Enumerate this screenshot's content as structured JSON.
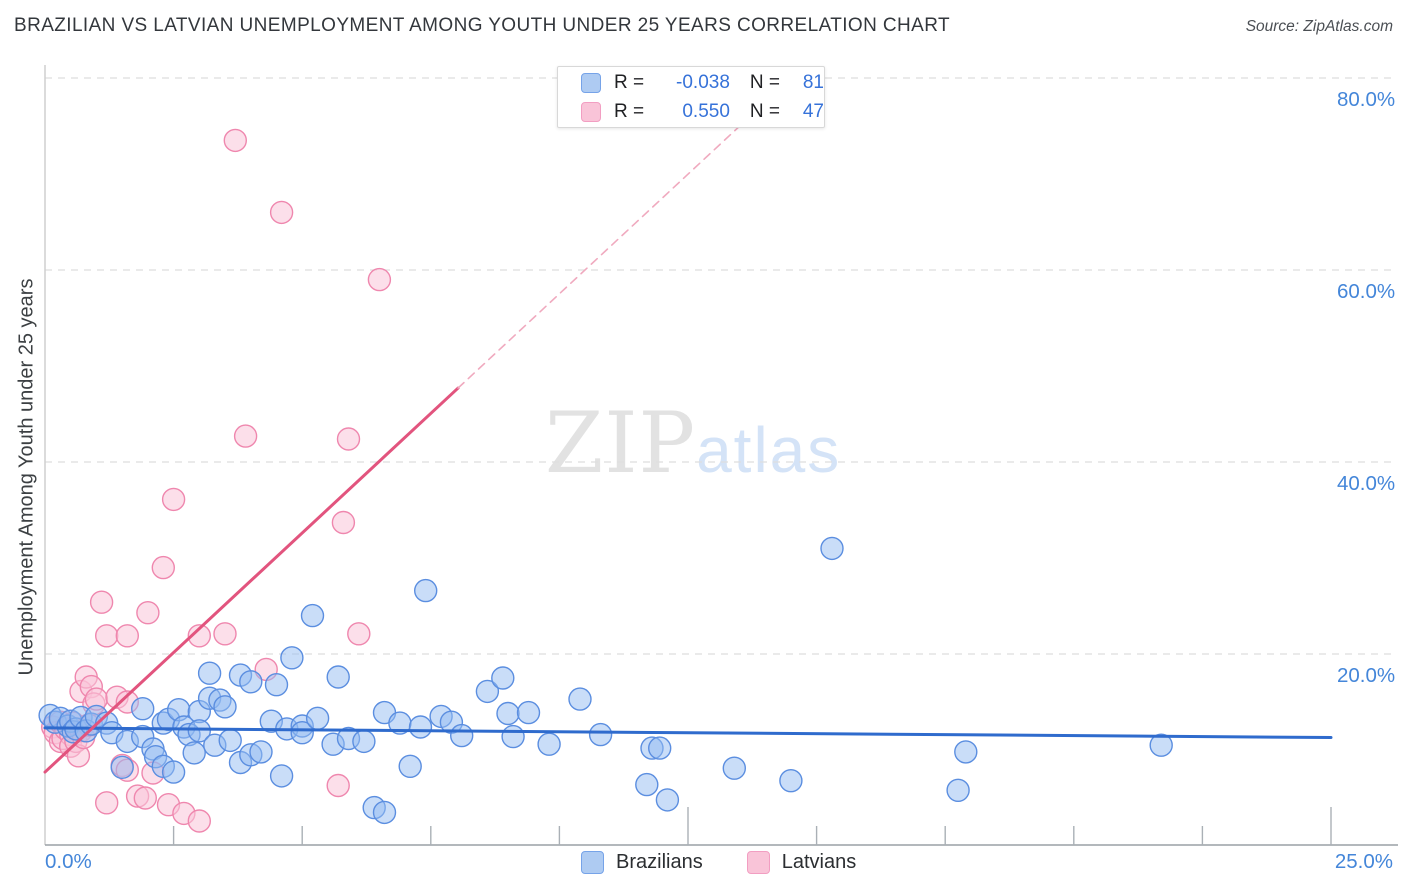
{
  "header": {
    "title": "BRAZILIAN VS LATVIAN UNEMPLOYMENT AMONG YOUTH UNDER 25 YEARS CORRELATION CHART",
    "source": "Source: ZipAtlas.com"
  },
  "y_axis": {
    "label": "Unemployment Among Youth under 25 years",
    "ticks": [
      {
        "pct": 80,
        "label": "80.0%"
      },
      {
        "pct": 60,
        "label": "60.0%"
      },
      {
        "pct": 40,
        "label": "40.0%"
      },
      {
        "pct": 20,
        "label": "20.0%"
      }
    ]
  },
  "x_axis": {
    "min_label": "0.0%",
    "max_label": "25.0%",
    "tick_pcts": [
      2.5,
      5,
      7.5,
      10,
      12.5,
      15,
      17.5,
      20,
      22.5,
      25
    ],
    "major_tick_pcts": [
      12.5,
      25
    ]
  },
  "legend_box": {
    "rows": [
      {
        "series": "Brazilians",
        "r_label": "R =",
        "r_value": "-0.038",
        "n_label": "N =",
        "n_value": "81"
      },
      {
        "series": "Latvians",
        "r_label": "R =",
        "r_value": "0.550",
        "n_label": "N =",
        "n_value": "47"
      }
    ]
  },
  "bottom_legend": {
    "items": [
      {
        "label": "Brazilians"
      },
      {
        "label": "Latvians"
      }
    ]
  },
  "watermark": {
    "zip": "ZIP",
    "atlas": "atlas"
  },
  "colors": {
    "title": "#33373c",
    "tick_label_blue": "#4486d9",
    "grid": "#dedede",
    "axis_bottom": "#9aa0a6",
    "axis_left": "#cfcfcf",
    "tick": "#aab0b6",
    "blue_stroke": "#5b8ee0",
    "blue_fill": "rgba(147,187,242,0.50)",
    "pink_stroke": "#ef87ae",
    "pink_fill": "rgba(249,196,216,0.55)",
    "blue_trend": "#2f6bcd",
    "pink_trend": "#e2547e",
    "pink_trend_dashed": "#f0aabf"
  },
  "chart_data": {
    "type": "scatter",
    "title": "BRAZILIAN VS LATVIAN UNEMPLOYMENT AMONG YOUTH UNDER 25 YEARS CORRELATION CHART",
    "xlabel": "",
    "ylabel": "Unemployment Among Youth under 25 years",
    "xlim": [
      0,
      25
    ],
    "ylim": [
      0,
      84
    ],
    "grid": "dashed-horizontal",
    "legend_position": "bottom-center",
    "series": [
      {
        "name": "Brazilians",
        "R": -0.038,
        "N": 81,
        "points": [
          [
            0.1,
            13.6
          ],
          [
            0.2,
            12.9
          ],
          [
            0.3,
            13.3
          ],
          [
            0.45,
            12.5
          ],
          [
            0.5,
            13.0
          ],
          [
            0.55,
            11.9
          ],
          [
            0.6,
            12.2
          ],
          [
            0.7,
            13.4
          ],
          [
            0.8,
            12.0
          ],
          [
            0.9,
            12.7
          ],
          [
            1.0,
            13.5
          ],
          [
            1.2,
            12.8
          ],
          [
            1.3,
            11.8
          ],
          [
            1.5,
            8.2
          ],
          [
            1.6,
            10.9
          ],
          [
            1.9,
            11.4
          ],
          [
            1.9,
            14.3
          ],
          [
            2.1,
            10.1
          ],
          [
            2.15,
            9.3
          ],
          [
            2.3,
            12.8
          ],
          [
            2.3,
            8.3
          ],
          [
            2.4,
            13.2
          ],
          [
            2.5,
            7.7
          ],
          [
            2.6,
            14.2
          ],
          [
            2.7,
            12.4
          ],
          [
            2.8,
            11.6
          ],
          [
            2.9,
            9.7
          ],
          [
            3.0,
            14.0
          ],
          [
            3.0,
            12.0
          ],
          [
            3.2,
            15.4
          ],
          [
            3.2,
            18.0
          ],
          [
            3.3,
            10.5
          ],
          [
            3.4,
            15.2
          ],
          [
            3.5,
            14.5
          ],
          [
            3.6,
            11.0
          ],
          [
            3.8,
            17.8
          ],
          [
            3.8,
            8.7
          ],
          [
            4.0,
            17.1
          ],
          [
            4.0,
            9.5
          ],
          [
            4.2,
            9.8
          ],
          [
            4.4,
            13.0
          ],
          [
            4.5,
            16.8
          ],
          [
            4.6,
            7.3
          ],
          [
            4.7,
            12.2
          ],
          [
            4.8,
            19.6
          ],
          [
            5.0,
            12.5
          ],
          [
            5.0,
            11.8
          ],
          [
            5.2,
            24.0
          ],
          [
            5.3,
            13.3
          ],
          [
            5.6,
            10.6
          ],
          [
            5.7,
            17.6
          ],
          [
            5.9,
            11.2
          ],
          [
            6.2,
            10.9
          ],
          [
            6.4,
            4.0
          ],
          [
            6.6,
            3.5
          ],
          [
            6.6,
            13.9
          ],
          [
            6.9,
            12.8
          ],
          [
            7.1,
            8.3
          ],
          [
            7.3,
            12.4
          ],
          [
            7.4,
            26.6
          ],
          [
            7.7,
            13.5
          ],
          [
            7.9,
            12.9
          ],
          [
            8.1,
            11.5
          ],
          [
            8.6,
            16.1
          ],
          [
            8.9,
            17.5
          ],
          [
            9.0,
            13.8
          ],
          [
            9.1,
            11.4
          ],
          [
            9.4,
            13.9
          ],
          [
            9.8,
            10.6
          ],
          [
            10.4,
            15.3
          ],
          [
            10.8,
            11.6
          ],
          [
            11.7,
            6.4
          ],
          [
            11.8,
            10.2
          ],
          [
            11.95,
            10.2
          ],
          [
            12.1,
            4.8
          ],
          [
            13.4,
            8.1
          ],
          [
            14.5,
            6.8
          ],
          [
            15.3,
            31.0
          ],
          [
            17.75,
            5.8
          ],
          [
            17.9,
            9.8
          ],
          [
            21.7,
            10.5
          ]
        ]
      },
      {
        "name": "Latvians",
        "R": 0.55,
        "N": 47,
        "points": [
          [
            0.15,
            12.4
          ],
          [
            0.2,
            11.8
          ],
          [
            0.3,
            12.9
          ],
          [
            0.3,
            10.9
          ],
          [
            0.35,
            11.2
          ],
          [
            0.4,
            12.2
          ],
          [
            0.5,
            11.6
          ],
          [
            0.5,
            10.4
          ],
          [
            0.55,
            12.8
          ],
          [
            0.6,
            10.9
          ],
          [
            0.65,
            9.4
          ],
          [
            0.7,
            12.0
          ],
          [
            0.75,
            11.3
          ],
          [
            0.85,
            12.6
          ],
          [
            0.7,
            16.1
          ],
          [
            0.8,
            17.6
          ],
          [
            0.9,
            16.6
          ],
          [
            0.95,
            14.8
          ],
          [
            1.0,
            15.3
          ],
          [
            1.1,
            25.4
          ],
          [
            1.2,
            21.9
          ],
          [
            1.2,
            4.5
          ],
          [
            1.4,
            15.5
          ],
          [
            1.5,
            8.4
          ],
          [
            1.6,
            21.9
          ],
          [
            1.6,
            15.0
          ],
          [
            1.6,
            7.9
          ],
          [
            1.8,
            5.2
          ],
          [
            1.95,
            5.0
          ],
          [
            2.0,
            24.3
          ],
          [
            2.1,
            7.6
          ],
          [
            2.3,
            29.0
          ],
          [
            2.4,
            4.3
          ],
          [
            2.5,
            36.1
          ],
          [
            2.7,
            3.4
          ],
          [
            3.0,
            21.9
          ],
          [
            3.0,
            2.6
          ],
          [
            3.5,
            22.1
          ],
          [
            3.7,
            73.5
          ],
          [
            3.9,
            42.7
          ],
          [
            4.3,
            18.4
          ],
          [
            4.6,
            66.0
          ],
          [
            5.7,
            6.3
          ],
          [
            5.8,
            33.7
          ],
          [
            5.9,
            42.4
          ],
          [
            6.1,
            22.1
          ],
          [
            6.5,
            59.0
          ]
        ]
      }
    ],
    "trend_lines": [
      {
        "series": "Brazilians",
        "style": "solid",
        "x1": 0,
        "y1": 12.3,
        "x2": 25,
        "y2": 11.3
      },
      {
        "series": "Latvians",
        "style": "solid",
        "x1": 0,
        "y1": 7.7,
        "x2": 8.03,
        "y2": 47.7
      },
      {
        "series": "Latvians",
        "style": "dashed",
        "x1": 8.03,
        "y1": 47.7,
        "x2": 14.75,
        "y2": 81.2
      }
    ]
  }
}
